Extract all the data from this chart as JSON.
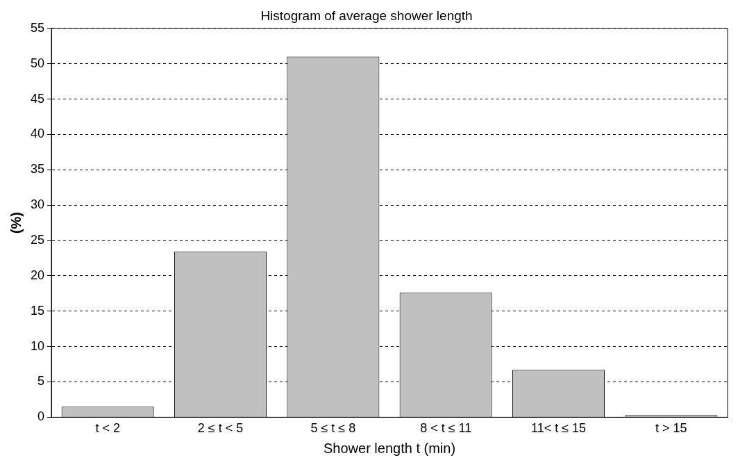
{
  "chart_data": {
    "type": "bar",
    "title": "Histogram of average shower length",
    "xlabel": "Shower length t (min)",
    "ylabel": "(%)",
    "categories": [
      "t < 2",
      "2 ≤ t < 5",
      "5 ≤ t ≤ 8",
      "8 < t ≤ 11",
      "11< t ≤ 15",
      "t > 15"
    ],
    "values": [
      1.5,
      23.4,
      51.0,
      17.6,
      6.7,
      0.3
    ],
    "color": "#c0c0c0",
    "ylim": [
      0,
      55
    ],
    "yticks": [
      0,
      5,
      10,
      15,
      20,
      25,
      30,
      35,
      40,
      45,
      50,
      55
    ],
    "grid": "y",
    "legend": false
  }
}
